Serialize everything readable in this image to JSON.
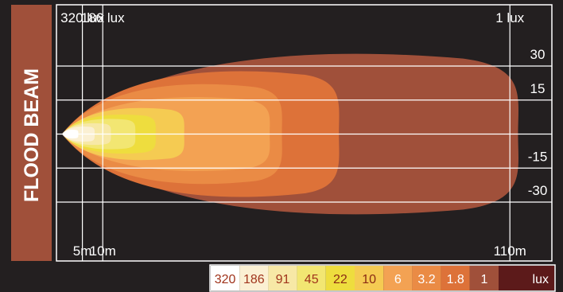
{
  "chart_data": {
    "type": "heatmap",
    "title": "FLOOD BEAM",
    "x_ticks": [
      {
        "value": 5,
        "label": "5m"
      },
      {
        "value": 10,
        "label": "10m"
      },
      {
        "value": 110,
        "label": "110m"
      }
    ],
    "y_ticks": [
      {
        "value": 30,
        "label": "30"
      },
      {
        "value": 15,
        "label": "15"
      },
      {
        "value": -15,
        "label": "-15"
      },
      {
        "value": -30,
        "label": "-30"
      }
    ],
    "top_labels": [
      {
        "value": 5,
        "label": "320 lux"
      },
      {
        "value": 10,
        "label": "186 lux"
      },
      {
        "value": 110,
        "label": "1 lux"
      }
    ],
    "xlim": [
      0,
      120
    ],
    "ylim": [
      -39,
      39
    ],
    "grid": true,
    "legend_placement": "bottom-right",
    "levels": [
      {
        "label": "320",
        "lux": 320,
        "color": "#ffffff",
        "text_color": "#a0341c",
        "reach_m": 4,
        "half_width": 2.0
      },
      {
        "label": "186",
        "lux": 186,
        "color": "#fbf0d3",
        "text_color": "#a0341c",
        "reach_m": 8,
        "half_width": 3.5
      },
      {
        "label": "91",
        "lux": 91,
        "color": "#f7e8a6",
        "text_color": "#a0341c",
        "reach_m": 12,
        "half_width": 5.0
      },
      {
        "label": "45",
        "lux": 45,
        "color": "#f2e672",
        "text_color": "#a0341c",
        "reach_m": 18,
        "half_width": 7.0
      },
      {
        "label": "22",
        "lux": 22,
        "color": "#eedd3e",
        "text_color": "#8a2a14",
        "reach_m": 23,
        "half_width": 9.0
      },
      {
        "label": "10",
        "lux": 10,
        "color": "#f5cb52",
        "text_color": "#8a2a14",
        "reach_m": 30,
        "half_width": 12.0
      },
      {
        "label": "6",
        "lux": 6,
        "color": "#f3a253",
        "text_color": "#ffffff",
        "reach_m": 51,
        "half_width": 17.0
      },
      {
        "label": "3.2",
        "lux": 3.2,
        "color": "#ea8b45",
        "text_color": "#ffffff",
        "reach_m": 54,
        "half_width": 23.0
      },
      {
        "label": "1.8",
        "lux": 1.8,
        "color": "#dd7239",
        "text_color": "#ffffff",
        "reach_m": 68,
        "half_width": 29.0
      },
      {
        "label": "1",
        "lux": 1,
        "color": "#a0503a",
        "text_color": "#ffffff",
        "reach_m": 112,
        "half_width": 37.0
      }
    ],
    "legend_unit": "lux",
    "colors": {
      "background": "#231f20",
      "title_bar": "#a0503a",
      "grid": "#ffffff",
      "legend_unit_bg": "#5c1a1a"
    }
  }
}
